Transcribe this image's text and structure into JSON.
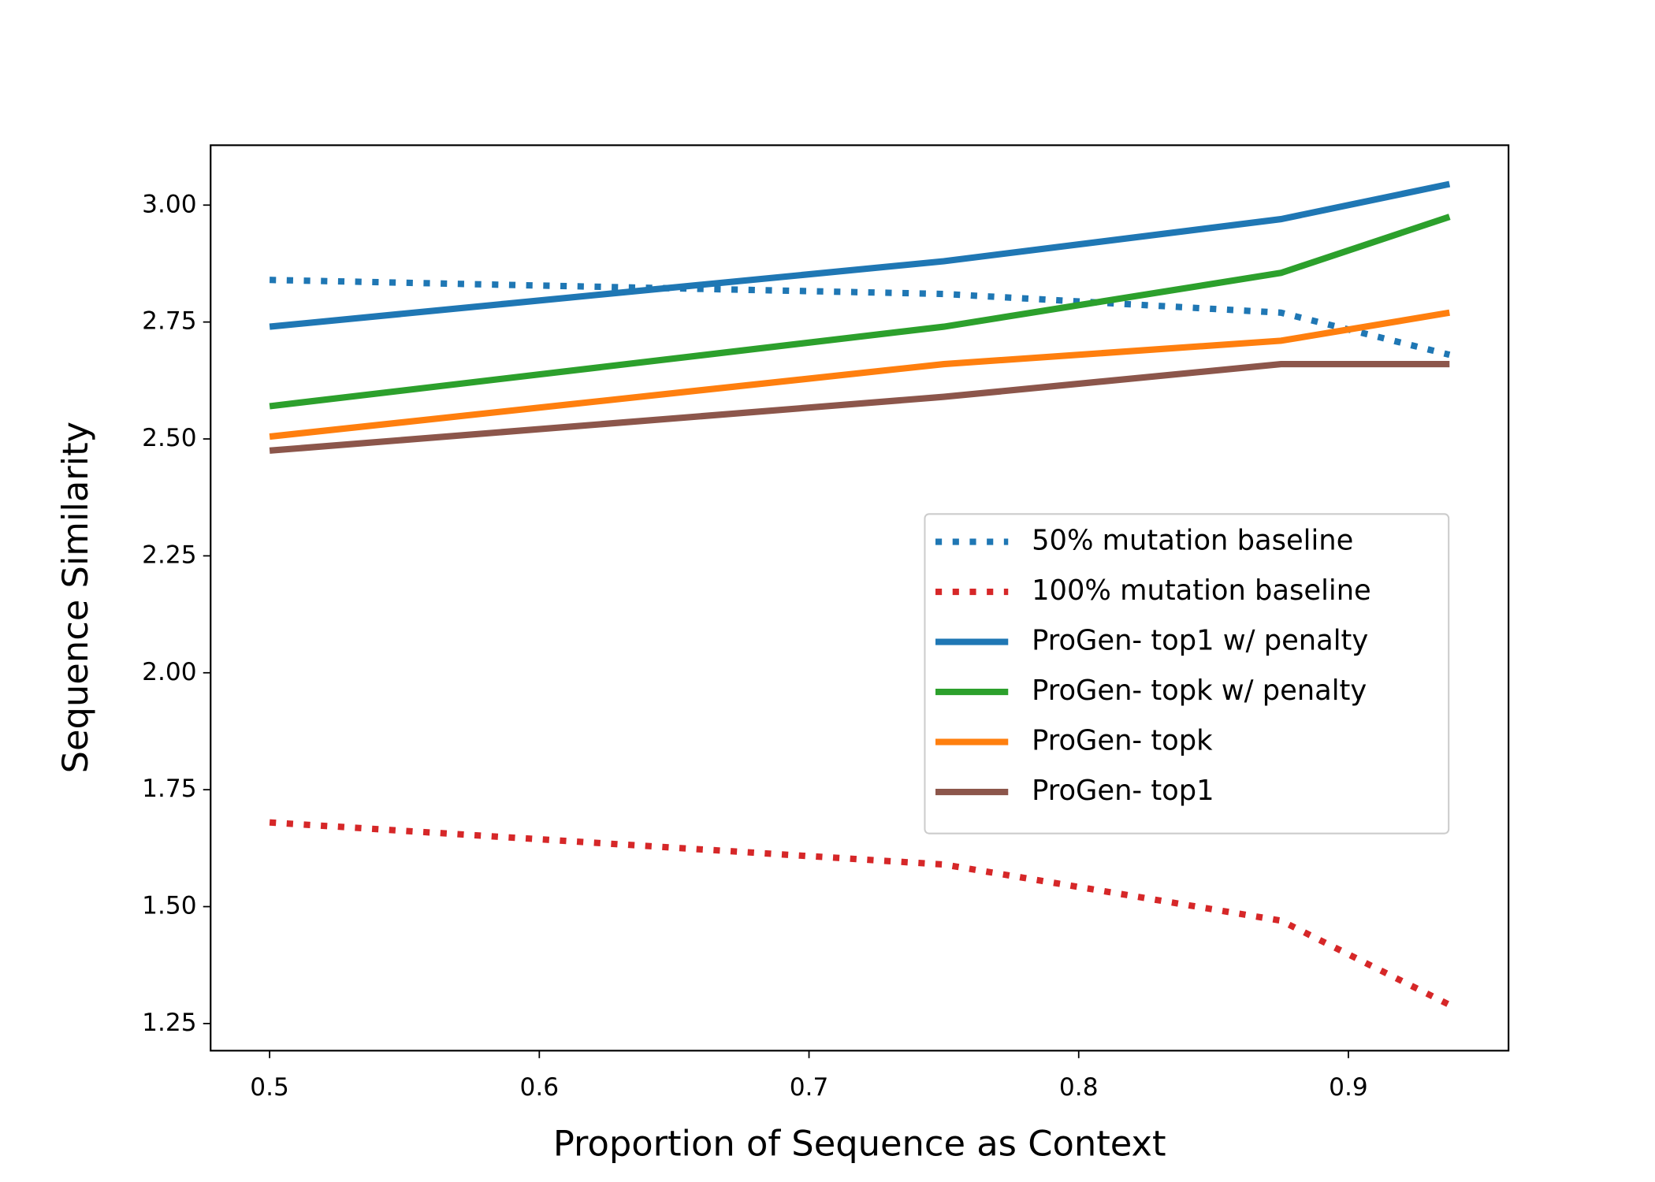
{
  "chart_data": {
    "type": "line",
    "x_label": "Proportion of Sequence as Context",
    "y_label": "Sequence Similarity",
    "x": [
      0.5,
      0.75,
      0.875,
      0.9375
    ],
    "series": [
      {
        "name": "50% mutation baseline",
        "color": "#1f77b4",
        "style": "dotted",
        "values": [
          2.84,
          2.81,
          2.77,
          2.68
        ]
      },
      {
        "name": "100% mutation baseline",
        "color": "#d62728",
        "style": "dotted",
        "values": [
          1.68,
          1.59,
          1.47,
          1.29
        ]
      },
      {
        "name": "ProGen- top1 w/ penalty",
        "color": "#1f77b4",
        "style": "solid",
        "values": [
          2.74,
          2.88,
          2.97,
          3.045
        ]
      },
      {
        "name": "ProGen- topk w/ penalty",
        "color": "#2ca02c",
        "style": "solid",
        "values": [
          2.57,
          2.74,
          2.855,
          2.975
        ]
      },
      {
        "name": "ProGen- topk",
        "color": "#ff7f0e",
        "style": "solid",
        "values": [
          2.505,
          2.66,
          2.71,
          2.77
        ]
      },
      {
        "name": "ProGen- top1",
        "color": "#8c564b",
        "style": "solid",
        "values": [
          2.475,
          2.59,
          2.66,
          2.66
        ]
      }
    ],
    "xlim": [
      0.478125,
      0.959375
    ],
    "xticks": [
      0.5,
      0.6,
      0.7,
      0.8,
      0.9
    ],
    "ylim": [
      1.192,
      3.128
    ],
    "yticks": [
      {
        "value": 1.25,
        "label": "1.25"
      },
      {
        "value": 1.5,
        "label": "1.50"
      },
      {
        "value": 1.75,
        "label": "1.75"
      },
      {
        "value": 2,
        "label": "2.00"
      },
      {
        "value": 2.25,
        "label": "2.25"
      },
      {
        "value": 2.5,
        "label": "2.50"
      },
      {
        "value": 2.75,
        "label": "2.75"
      },
      {
        "value": 3,
        "label": "3.00"
      }
    ],
    "grid": false,
    "legend_position": "center right"
  }
}
